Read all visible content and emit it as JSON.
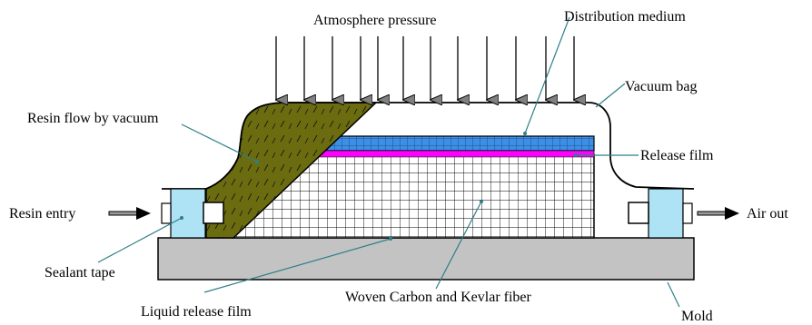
{
  "labels": {
    "atmosphere_pressure": "Atmosphere pressure",
    "distribution_medium": "Distribution medium",
    "vacuum_bag": "Vacuum bag",
    "resin_flow": "Resin flow by vacuum",
    "release_film": "Release film",
    "resin_entry": "Resin entry",
    "air_out": "Air out",
    "sealant_tape": "Sealant tape",
    "liquid_release_film": "Liquid release film",
    "woven_fiber": "Woven Carbon and Kevlar fiber",
    "mold": "Mold"
  },
  "colors": {
    "resin": "#6b6b10",
    "distribution_medium": "#3d8fe6",
    "release_film": "#ff00ff",
    "sealant_tape": "#aee3f6",
    "mold": "#c3c3c3",
    "leader_line": "#2e7f88"
  }
}
